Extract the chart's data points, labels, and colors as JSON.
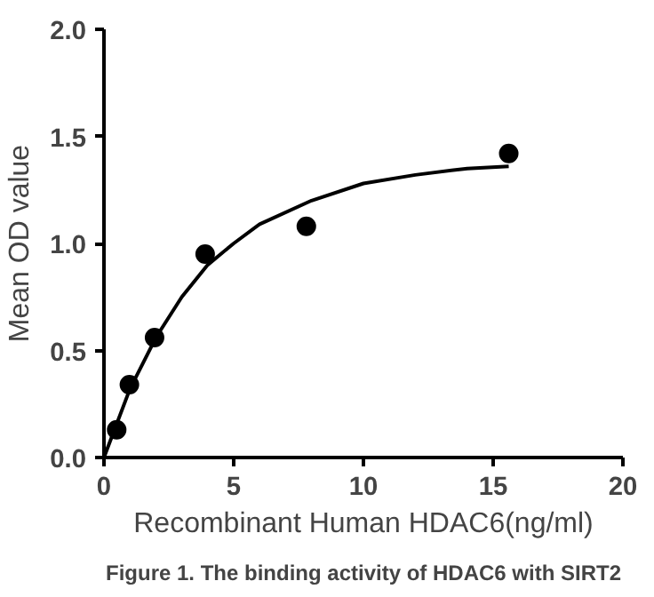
{
  "chart_data": {
    "type": "scatter",
    "xlabel": "Recombinant Human HDAC6(ng/ml)",
    "ylabel": "Mean OD value",
    "xlim": [
      0,
      20
    ],
    "xticks": [
      0,
      5,
      10,
      15,
      20
    ],
    "ylim": [
      0,
      2.0
    ],
    "yticks": [
      {
        "value": 0,
        "label": "0.0"
      },
      {
        "value": 0.5,
        "label": "0.5"
      },
      {
        "value": 1,
        "label": "1.0"
      },
      {
        "value": 1.5,
        "label": "1.5"
      },
      {
        "value": 2,
        "label": "2.0"
      }
    ],
    "grid": false,
    "marker": "circle",
    "series": [
      {
        "color": "#000000",
        "x": [
          0.49,
          0.98,
          1.95,
          3.9,
          7.8,
          15.6
        ],
        "values": [
          0.13,
          0.34,
          0.56,
          0.95,
          1.08,
          1.42
        ]
      },
      {
        "type": "line",
        "color": "#000000",
        "line_style": "solid",
        "marker": "none",
        "x": [
          0,
          1,
          2,
          3,
          4,
          5,
          6,
          8,
          10,
          12,
          14,
          15.6
        ],
        "values": [
          0,
          0.32,
          0.56,
          0.75,
          0.9,
          1.0,
          1.09,
          1.2,
          1.28,
          1.32,
          1.35,
          1.36
        ]
      }
    ],
    "annotations": [
      "Figure 1. The binding activity of HDAC6 with SIRT2"
    ]
  }
}
